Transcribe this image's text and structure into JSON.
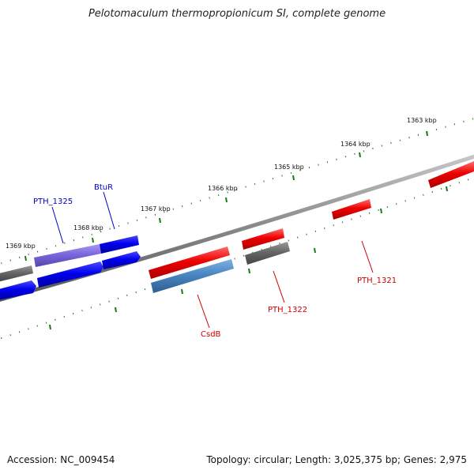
{
  "title": "Pelotomaculum thermopropionicum SI, complete genome",
  "footer": {
    "accession": "Accession: NC_009454",
    "topology": "Topology: circular; Length: 3,025,375 bp; Genes: 2,975"
  },
  "kbp_labels": [
    "1363 kbp",
    "1364 kbp",
    "1365 kbp",
    "1366 kbp",
    "1367 kbp",
    "1368 kbp",
    "1369 kbp"
  ],
  "genes": {
    "pth1325": "PTH_1325",
    "btur": "BtuR",
    "csdb": "CsdB",
    "pth1322": "PTH_1322",
    "pth1321": "PTH_1321"
  },
  "colors": {
    "backbone": "#888888",
    "tick": "#1a7a1a",
    "blue_gene": "#0000ee",
    "purple_gene": "#7a66dd",
    "red_gene": "#ee0000",
    "steel_gene": "#4a86c2",
    "gray_gene": "#666666"
  }
}
